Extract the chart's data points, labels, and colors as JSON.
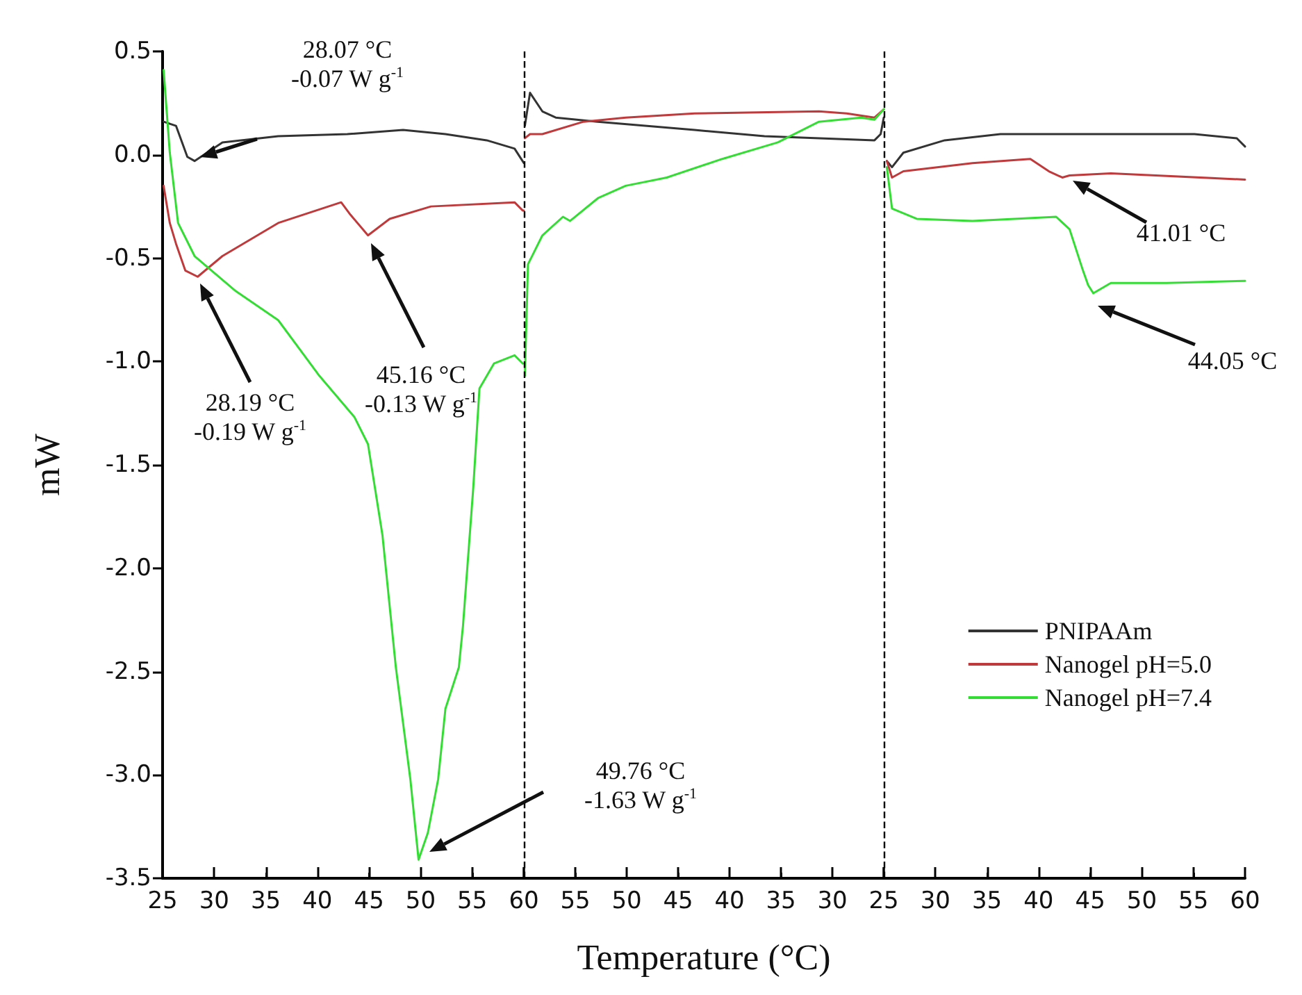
{
  "chart_data": [
    {
      "type": "line",
      "ylabel": "mW",
      "xlim": [
        25,
        60
      ],
      "ylim": [
        -3.5,
        0.5
      ],
      "xticks": [
        25,
        30,
        35,
        40,
        45,
        50,
        55,
        60
      ],
      "yticks": [
        0.5,
        {
          "value": 0,
          "label": "0.0"
        },
        -0.5,
        {
          "value": -1,
          "label": "-1.0"
        },
        -1.5,
        {
          "value": -2,
          "label": "-2.0"
        },
        -2.5,
        {
          "value": -3,
          "label": "-3.0"
        },
        -3.5
      ],
      "grid": false,
      "marker": "none",
      "line_style": "solid",
      "series": [
        {
          "color": "#333333",
          "x": [
            25.1,
            26.3,
            27.4,
            28.1,
            30.8,
            36.2,
            42.9,
            48.3,
            52.4,
            56.4,
            59.1,
            60.0
          ],
          "values": [
            0.16,
            0.14,
            -0.01,
            -0.03,
            0.06,
            0.09,
            0.1,
            0.12,
            0.1,
            0.07,
            0.03,
            -0.04
          ]
        },
        {
          "color": "#c0393b",
          "x": [
            25.1,
            25.7,
            26.3,
            27.2,
            28.4,
            30.8,
            36.2,
            42.3,
            43.2,
            44.9,
            47.0,
            51.0,
            59.1,
            59.9,
            60.0
          ],
          "values": [
            -0.15,
            -0.33,
            -0.43,
            -0.56,
            -0.59,
            -0.49,
            -0.33,
            -0.23,
            -0.29,
            -0.39,
            -0.31,
            -0.25,
            -0.23,
            -0.27,
            -0.27
          ]
        },
        {
          "color": "#33dd33",
          "x": [
            25.1,
            25.7,
            26.5,
            28.1,
            32.1,
            36.2,
            40.2,
            43.6,
            44.9,
            46.3,
            47.6,
            49.0,
            49.8,
            50.7,
            51.7,
            52.4,
            53.7,
            54.1,
            55.1,
            55.7,
            57.1,
            59.1,
            59.9
          ],
          "values": [
            0.41,
            0.01,
            -0.33,
            -0.49,
            -0.66,
            -0.8,
            -1.07,
            -1.27,
            -1.4,
            -1.84,
            -2.48,
            -3.02,
            -3.41,
            -3.28,
            -3.02,
            -2.68,
            -2.48,
            -2.28,
            -1.61,
            -1.13,
            -1.01,
            -0.97,
            -1.01
          ]
        }
      ],
      "annotations": [
        "28.07 °C\n-0.07 W g$^{-1}$",
        "28.19 °C\n-0.19 W g$^{-1}$",
        "45.16 °C\n-0.13 W g$^{-1}$",
        "49.76 °C\n-1.63 W g$^{-1}$"
      ]
    },
    {
      "type": "line",
      "xlabel": "Temperature (°C)",
      "xlim": [
        60,
        25
      ],
      "ylim": [
        -3.5,
        0.5
      ],
      "tick_labels": "x",
      "xticks": [
        {
          "value": 60,
          "label": null
        },
        55,
        50,
        45,
        40,
        35,
        30,
        25
      ],
      "grid": false,
      "marker": "none",
      "line_style": "solid",
      "series": [
        {
          "color": "#333333",
          "x": [
            59.9,
            59.4,
            58.2,
            56.9,
            52.8,
            43.4,
            36.6,
            25.9,
            25.3,
            25.0
          ],
          "values": [
            0.14,
            0.3,
            0.21,
            0.18,
            0.16,
            0.12,
            0.09,
            0.07,
            0.1,
            0.18
          ]
        },
        {
          "color": "#c0393b",
          "x": [
            59.9,
            59.4,
            58.2,
            54.2,
            50.1,
            43.4,
            31.3,
            28.6,
            25.9,
            25.0
          ],
          "values": [
            0.08,
            0.1,
            0.1,
            0.16,
            0.18,
            0.2,
            0.21,
            0.2,
            0.18,
            0.22
          ]
        },
        {
          "color": "#33dd33",
          "x": [
            59.9,
            59.6,
            58.2,
            56.2,
            55.5,
            52.8,
            50.1,
            46.1,
            40.7,
            35.3,
            31.3,
            27.2,
            25.9,
            25.0
          ],
          "values": [
            -1.07,
            -0.53,
            -0.39,
            -0.3,
            -0.32,
            -0.21,
            -0.15,
            -0.11,
            -0.02,
            0.06,
            0.16,
            0.18,
            0.17,
            0.22
          ]
        }
      ],
      "ref_lines": [
        {
          "axis": "x",
          "value": 60,
          "color": "#000000",
          "line_style": "dashed"
        },
        {
          "axis": "x",
          "value": 25,
          "color": "#000000",
          "line_style": "dashed"
        }
      ]
    },
    {
      "type": "line",
      "xlim": [
        25,
        60
      ],
      "ylim": [
        -3.5,
        0.5
      ],
      "tick_labels": "x",
      "xticks": [
        {
          "value": 25,
          "label": null
        },
        30,
        35,
        40,
        45,
        50,
        55,
        60
      ],
      "grid": false,
      "legend": "bottom right",
      "marker": "none",
      "line_style": "solid",
      "series": [
        {
          "name": "PNIPAAm",
          "color": "#333333",
          "x": [
            25.3,
            25.8,
            26.9,
            30.9,
            36.3,
            47.0,
            55.1,
            59.2,
            60.0
          ],
          "values": [
            -0.03,
            -0.06,
            0.01,
            0.07,
            0.1,
            0.1,
            0.1,
            0.08,
            0.04
          ]
        },
        {
          "name": "Nanogel pH=5.0",
          "color": "#c0393b",
          "x": [
            25.3,
            25.8,
            26.9,
            33.6,
            39.2,
            41.0,
            42.3,
            43.0,
            47.0,
            60.0
          ],
          "values": [
            -0.03,
            -0.11,
            -0.08,
            -0.04,
            -0.02,
            -0.08,
            -0.11,
            -0.1,
            -0.09,
            -0.12
          ]
        },
        {
          "name": "Nanogel pH=7.4",
          "color": "#33dd33",
          "x": [
            25.3,
            25.8,
            28.2,
            33.6,
            41.7,
            43.0,
            44.3,
            44.8,
            45.3,
            47.0,
            52.4,
            60.0
          ],
          "values": [
            -0.06,
            -0.26,
            -0.31,
            -0.32,
            -0.3,
            -0.36,
            -0.56,
            -0.63,
            -0.67,
            -0.62,
            -0.62,
            -0.61
          ]
        }
      ],
      "annotations": [
        "41.01 °C",
        "44.05 °C"
      ]
    }
  ]
}
